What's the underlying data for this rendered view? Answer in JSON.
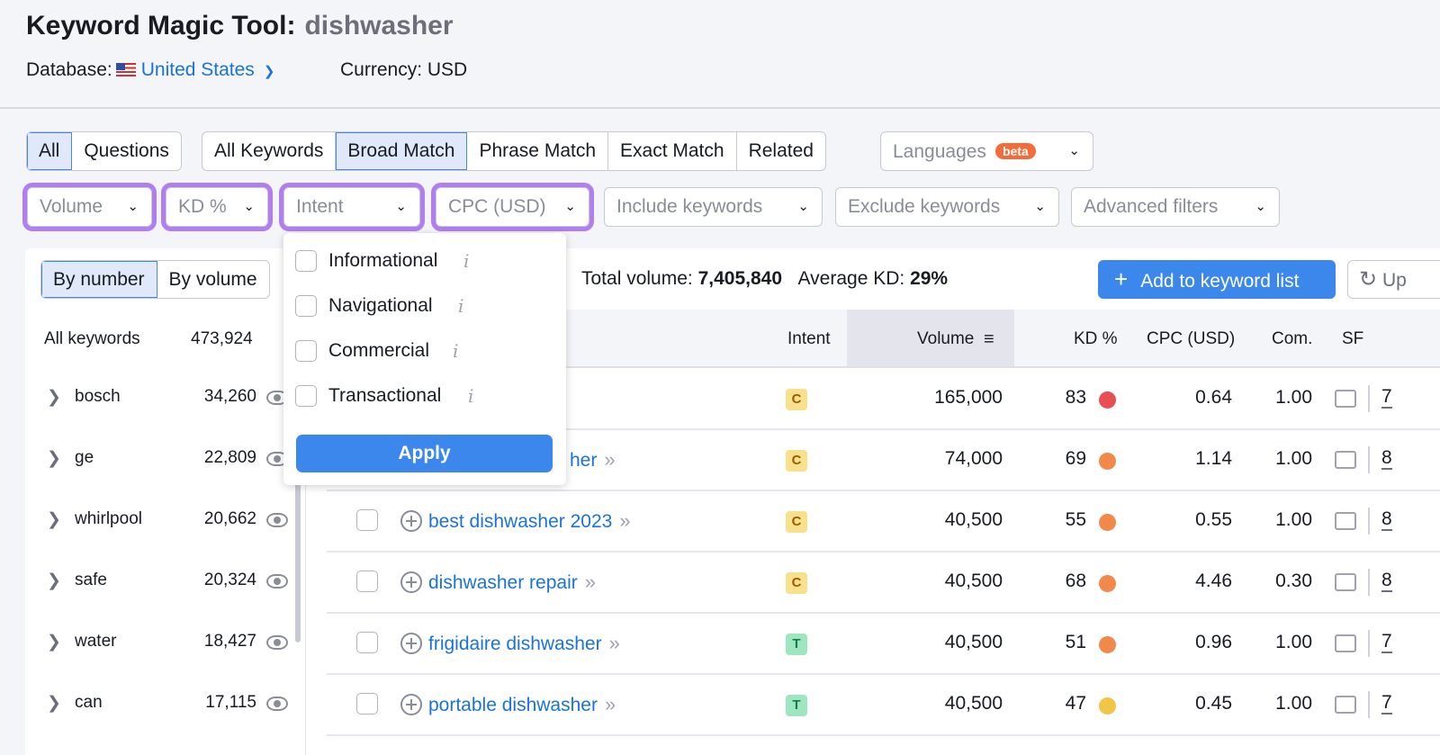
{
  "header": {
    "title": "Keyword Magic Tool:",
    "query": "dishwasher",
    "database_label": "Database:",
    "database_value": "United States",
    "currency": "Currency: USD"
  },
  "tabs_group1": [
    "All",
    "Questions"
  ],
  "tabs_group2": [
    "All Keywords",
    "Broad Match",
    "Phrase Match",
    "Exact Match",
    "Related"
  ],
  "languages": {
    "label": "Languages",
    "badge": "beta"
  },
  "filters": [
    "Volume",
    "KD %",
    "Intent",
    "CPC (USD)",
    "Include keywords",
    "Exclude keywords",
    "Advanced filters"
  ],
  "toggle": [
    "By number",
    "By volume"
  ],
  "summary": {
    "total_label": "Total volume:",
    "total": "7,405,840",
    "kd_label": "Average KD:",
    "kd": "29%"
  },
  "add_button": "Add to keyword list",
  "update_button": "Up",
  "sidebar": {
    "header": "All keywords",
    "header_count": "473,924",
    "items": [
      {
        "name": "bosch",
        "count": "34,260"
      },
      {
        "name": "ge",
        "count": "22,809"
      },
      {
        "name": "whirlpool",
        "count": "20,662"
      },
      {
        "name": "safe",
        "count": "20,324"
      },
      {
        "name": "water",
        "count": "18,427"
      },
      {
        "name": "can",
        "count": "17,115"
      }
    ]
  },
  "intent_menu": {
    "options": [
      "Informational",
      "Navigational",
      "Commercial",
      "Transactional"
    ],
    "apply": "Apply"
  },
  "table": {
    "headers": {
      "intent": "Intent",
      "volume": "Volume",
      "kd": "KD %",
      "cpc": "CPC (USD)",
      "com": "Com.",
      "sf": "SF"
    },
    "rows": [
      {
        "keyword": "",
        "intent": "C",
        "volume": "165,000",
        "kd": "83",
        "kd_color": "#e84f55",
        "cpc": "0.64",
        "com": "1.00",
        "sf": "7"
      },
      {
        "keyword": "her",
        "intent": "C",
        "volume": "74,000",
        "kd": "69",
        "kd_color": "#f0894a",
        "cpc": "1.14",
        "com": "1.00",
        "sf": "8"
      },
      {
        "keyword": "best dishwasher 2023",
        "intent": "C",
        "volume": "40,500",
        "kd": "55",
        "kd_color": "#f0894a",
        "cpc": "0.55",
        "com": "1.00",
        "sf": "8"
      },
      {
        "keyword": "dishwasher repair",
        "intent": "C",
        "volume": "40,500",
        "kd": "68",
        "kd_color": "#f0894a",
        "cpc": "4.46",
        "com": "0.30",
        "sf": "8"
      },
      {
        "keyword": "frigidaire dishwasher",
        "intent": "T",
        "volume": "40,500",
        "kd": "51",
        "kd_color": "#f0894a",
        "cpc": "0.96",
        "com": "1.00",
        "sf": "7"
      },
      {
        "keyword": "portable dishwasher",
        "intent": "T",
        "volume": "40,500",
        "kd": "47",
        "kd_color": "#f2c546",
        "cpc": "0.45",
        "com": "1.00",
        "sf": "7"
      }
    ]
  },
  "colors": {
    "accent": "#3b87ec",
    "link": "#1a73d9",
    "highlight": "#b17ef2",
    "intent_C": "#f9e08a",
    "intent_T": "#9ee6c0"
  }
}
